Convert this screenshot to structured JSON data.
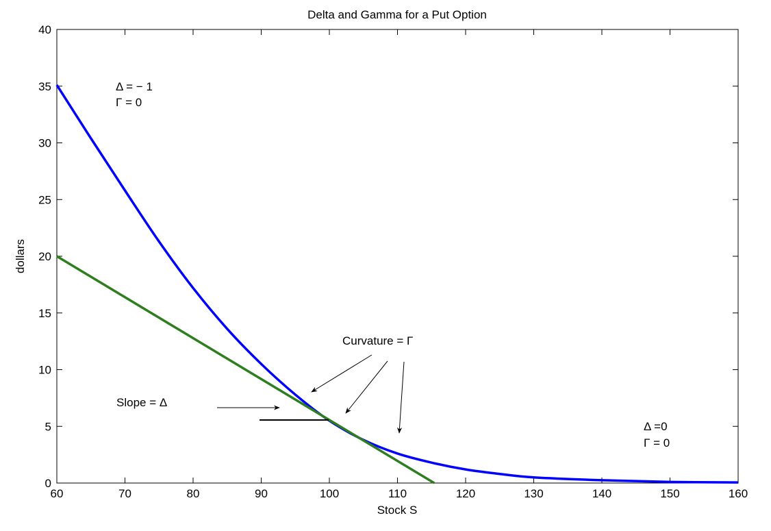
{
  "chart_data": {
    "type": "line",
    "title": "Delta and Gamma for a Put Option",
    "xlabel": "Stock S",
    "ylabel": "dollars",
    "xlim": [
      60,
      160
    ],
    "ylim": [
      0,
      40
    ],
    "x_ticks": [
      60,
      70,
      80,
      90,
      100,
      110,
      120,
      130,
      140,
      150,
      160
    ],
    "y_ticks": [
      0,
      5,
      10,
      15,
      20,
      25,
      30,
      35,
      40
    ],
    "grid": false,
    "legend": "none",
    "series": [
      {
        "color": "#0000ff",
        "points": [
          [
            60,
            35.1
          ],
          [
            65,
            30.4
          ],
          [
            70,
            25.8
          ],
          [
            75,
            21.3
          ],
          [
            80,
            17.2
          ],
          [
            85,
            13.6
          ],
          [
            90,
            10.5
          ],
          [
            95,
            7.8
          ],
          [
            100,
            5.5
          ],
          [
            105,
            3.8
          ],
          [
            110,
            2.6
          ],
          [
            115,
            1.8
          ],
          [
            120,
            1.2
          ],
          [
            125,
            0.8
          ],
          [
            130,
            0.5
          ],
          [
            140,
            0.25
          ],
          [
            150,
            0.1
          ],
          [
            160,
            0.05
          ]
        ]
      },
      {
        "color": "#2e7d1f",
        "points": [
          [
            60,
            20.0
          ],
          [
            115.4,
            0
          ]
        ]
      }
    ],
    "annotations": {
      "top_left_delta": "Δ = − 1",
      "top_left_gamma": "Γ = 0",
      "right_delta": "Δ =0",
      "right_gamma": "Γ = 0",
      "curvature": "Curvature = Γ",
      "slope": "Slope = Δ"
    }
  }
}
